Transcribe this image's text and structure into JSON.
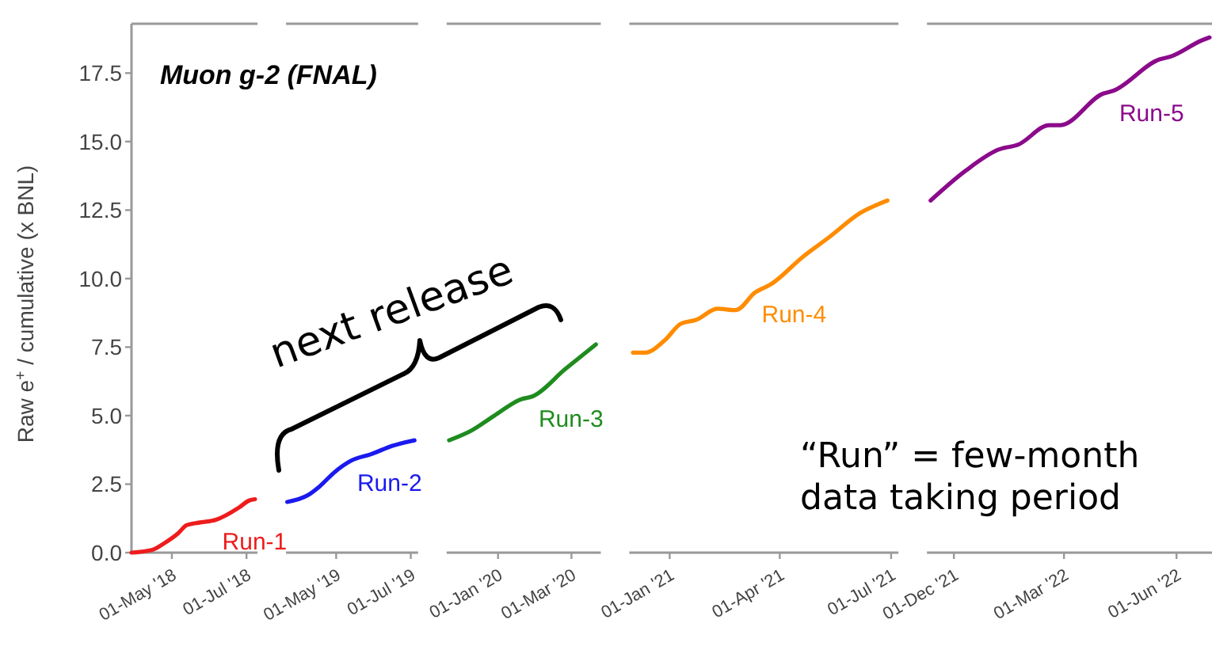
{
  "chart_data": [
    {
      "type": "line",
      "title": "Muon g-2 (FNAL)",
      "ylabel": "Raw e$^{+}$ / cumulative (x BNL)",
      "xlim": [
        "2018-03-29",
        "2018-07-10"
      ],
      "xticks": [
        {
          "value": "2018-05-01",
          "label": "01-May '18"
        },
        {
          "value": "2018-07-01",
          "label": "01-Jul '18"
        }
      ],
      "ylim": [
        0,
        19.3
      ],
      "yticks": [
        {
          "value": 0,
          "label": "0.0"
        },
        2.5,
        {
          "value": 5,
          "label": "5.0"
        },
        7.5,
        {
          "value": 10,
          "label": "10.0"
        },
        12.5,
        {
          "value": 15,
          "label": "15.0"
        },
        17.5
      ],
      "series": [
        {
          "name": "Run-1",
          "color": "#ee1c1c",
          "x": [
            "2018-03-29",
            "2018-04-15",
            "2018-04-25",
            "2018-05-06",
            "2018-05-13",
            "2018-05-24",
            "2018-06-06",
            "2018-06-25",
            "2018-07-03",
            "2018-07-08"
          ],
          "values": [
            0,
            0.1,
            0.35,
            0.7,
            1.0,
            1.1,
            1.2,
            1.65,
            1.9,
            1.95
          ]
        }
      ]
    },
    {
      "type": "line",
      "annotations": [
        "next release"
      ],
      "xlim": [
        "2019-03-21",
        "2019-07-07"
      ],
      "xticks": [
        {
          "value": "2019-05-01",
          "label": "01-May '19"
        },
        {
          "value": "2019-07-01",
          "label": "01-Jul '19"
        }
      ],
      "ylim": [
        0,
        19.3
      ],
      "tick_labels": "x",
      "series": [
        {
          "name": "Run-2",
          "color": "#1a1aee",
          "x": [
            "2019-03-22",
            "2019-04-08",
            "2019-04-17",
            "2019-04-30",
            "2019-05-13",
            "2019-05-30",
            "2019-06-16",
            "2019-07-04"
          ],
          "values": [
            1.85,
            2.1,
            2.4,
            2.95,
            3.35,
            3.6,
            3.9,
            4.1
          ]
        }
      ]
    },
    {
      "type": "line",
      "xlim": [
        "2019-11-20",
        "2020-03-25"
      ],
      "xticks": [
        {
          "value": "2020-01-01",
          "label": "01-Jan '20"
        },
        {
          "value": "2020-03-01",
          "label": "01-Mar '20"
        }
      ],
      "ylim": [
        0,
        19.3
      ],
      "tick_labels": "x",
      "series": [
        {
          "name": "Run-3",
          "color": "#1e8c1e",
          "x": [
            "2019-11-22",
            "2019-12-10",
            "2019-12-29",
            "2020-01-20",
            "2020-01-29",
            "2020-02-25",
            "2020-03-21"
          ],
          "values": [
            4.1,
            4.45,
            5.0,
            5.6,
            5.7,
            6.7,
            7.6
          ]
        }
      ]
    },
    {
      "type": "line",
      "xlim": [
        "2020-11-29",
        "2021-07-07"
      ],
      "xticks": [
        {
          "value": "2021-01-01",
          "label": "01-Jan '21"
        },
        {
          "value": "2021-04-01",
          "label": "01-Apr '21"
        },
        {
          "value": "2021-07-01",
          "label": "01-Jul '21"
        }
      ],
      "ylim": [
        0,
        19.3
      ],
      "tick_labels": "x",
      "series": [
        {
          "name": "Run-4",
          "color": "#ff8c00",
          "x": [
            "2020-12-02",
            "2020-12-12",
            "2020-12-28",
            "2021-01-10",
            "2021-01-23",
            "2021-02-09",
            "2021-02-24",
            "2021-03-12",
            "2021-03-25",
            "2021-04-20",
            "2021-05-11",
            "2021-06-06",
            "2021-06-28"
          ],
          "values": [
            7.3,
            7.3,
            7.75,
            8.35,
            8.5,
            8.9,
            8.85,
            9.5,
            9.8,
            10.8,
            11.5,
            12.4,
            12.85
          ]
        }
      ]
    },
    {
      "type": "line",
      "annotations": [
        "“Run” = few-month data taking period"
      ],
      "xlim": [
        "2021-11-09",
        "2022-06-30"
      ],
      "xticks": [
        {
          "value": "2021-12-01",
          "label": "01-Dec '21"
        },
        {
          "value": "2022-03-01",
          "label": "01-Mar '22"
        },
        {
          "value": "2022-06-01",
          "label": "01-Jun '22"
        }
      ],
      "ylim": [
        0,
        19.3
      ],
      "tick_labels": "x",
      "series": [
        {
          "name": "Run-5",
          "color": "#8b0a8b",
          "x": [
            "2021-11-12",
            "2021-12-11",
            "2022-01-06",
            "2022-01-23",
            "2022-02-17",
            "2022-02-26",
            "2022-04-02",
            "2022-04-10",
            "2022-05-18",
            "2022-05-27",
            "2022-06-22",
            "2022-06-28"
          ],
          "values": [
            12.85,
            13.95,
            14.7,
            14.9,
            15.6,
            15.6,
            16.75,
            16.85,
            18.0,
            18.1,
            18.7,
            18.8
          ]
        }
      ]
    }
  ]
}
